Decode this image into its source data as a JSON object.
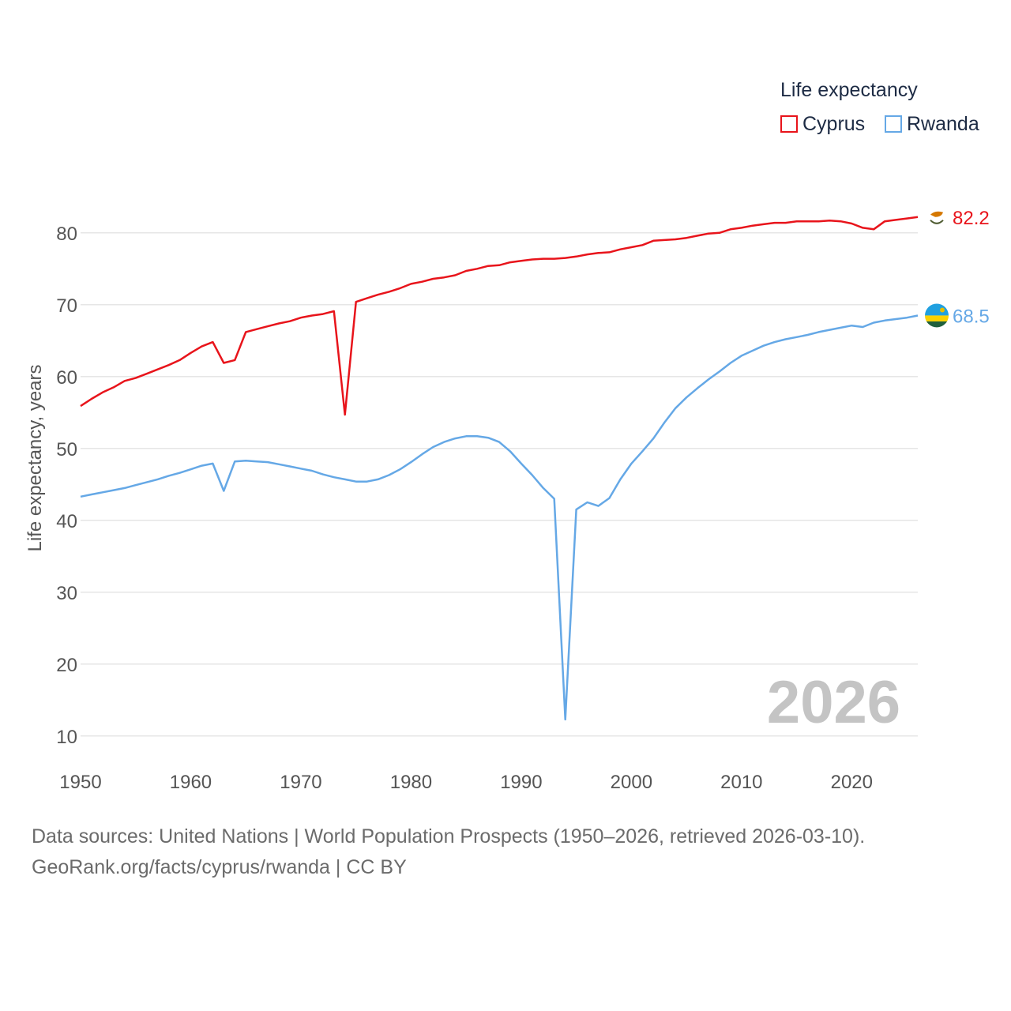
{
  "chart_data": {
    "type": "line",
    "legend_title": "Life expectancy",
    "ylabel": "Life expectancy, years",
    "xlabel": "",
    "xlim": [
      1950,
      2026
    ],
    "ylim": [
      8,
      88
    ],
    "yticks": [
      10,
      20,
      30,
      40,
      50,
      60,
      70,
      80
    ],
    "xticks": [
      1950,
      1960,
      1970,
      1980,
      1990,
      2000,
      2010,
      2020
    ],
    "current_year": "2026",
    "x_start": 1950,
    "series": [
      {
        "name": "Cyprus",
        "color": "#e8141b",
        "end_label": "82.2",
        "flag": "cyprus-flag-icon",
        "values": [
          55.9,
          56.9,
          57.8,
          58.5,
          59.4,
          59.8,
          60.4,
          61.0,
          61.6,
          62.3,
          63.3,
          64.2,
          64.8,
          61.9,
          62.3,
          66.2,
          66.6,
          67.0,
          67.4,
          67.7,
          68.2,
          68.5,
          68.7,
          69.1,
          54.7,
          70.4,
          70.9,
          71.4,
          71.8,
          72.3,
          72.9,
          73.2,
          73.6,
          73.8,
          74.1,
          74.7,
          75.0,
          75.4,
          75.5,
          75.9,
          76.1,
          76.3,
          76.4,
          76.4,
          76.5,
          76.7,
          77.0,
          77.2,
          77.3,
          77.7,
          78.0,
          78.3,
          78.9,
          79.0,
          79.1,
          79.3,
          79.6,
          79.9,
          80.0,
          80.5,
          80.7,
          81.0,
          81.2,
          81.4,
          81.4,
          81.6,
          81.6,
          81.6,
          81.7,
          81.6,
          81.3,
          80.7,
          80.5,
          81.6,
          81.8,
          82.0,
          82.2
        ]
      },
      {
        "name": "Rwanda",
        "color": "#65a8e6",
        "end_label": "68.5",
        "flag": "rwanda-flag-icon",
        "values": [
          43.3,
          43.6,
          43.9,
          44.2,
          44.5,
          44.9,
          45.3,
          45.7,
          46.2,
          46.6,
          47.1,
          47.6,
          47.9,
          44.1,
          48.2,
          48.3,
          48.2,
          48.1,
          47.8,
          47.5,
          47.2,
          46.9,
          46.4,
          46.0,
          45.7,
          45.4,
          45.4,
          45.7,
          46.3,
          47.1,
          48.1,
          49.2,
          50.2,
          50.9,
          51.4,
          51.7,
          51.7,
          51.5,
          50.9,
          49.6,
          47.9,
          46.3,
          44.5,
          43.0,
          12.3,
          41.5,
          42.5,
          42.0,
          43.1,
          45.7,
          47.9,
          49.6,
          51.4,
          53.6,
          55.6,
          57.1,
          58.4,
          59.6,
          60.7,
          61.9,
          62.9,
          63.6,
          64.3,
          64.8,
          65.2,
          65.5,
          65.8,
          66.2,
          66.5,
          66.8,
          67.1,
          66.9,
          67.5,
          67.8,
          68.0,
          68.2,
          68.5
        ]
      }
    ]
  },
  "footer": {
    "line1": "Data sources: United Nations | World Population Prospects (1950–2026, retrieved 2026-03-10).",
    "line2": "GeoRank.org/facts/cyprus/rwanda | CC BY"
  }
}
